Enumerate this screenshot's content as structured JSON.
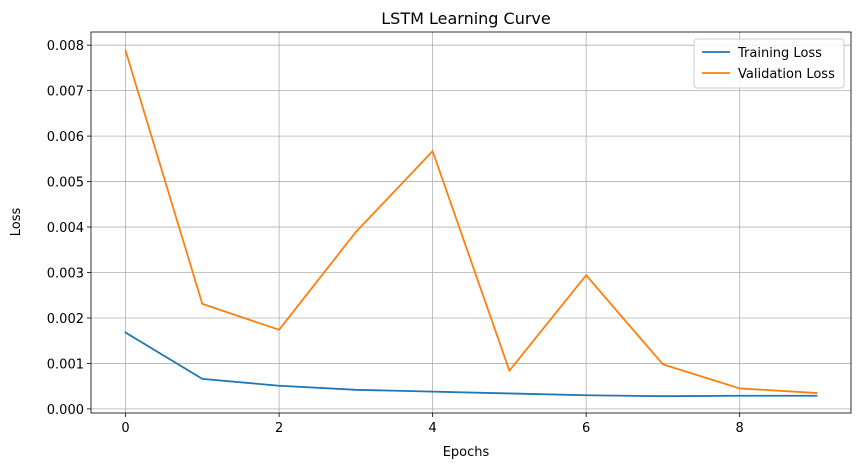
{
  "chart_data": {
    "type": "line",
    "title": "LSTM Learning Curve",
    "xlabel": "Epochs",
    "ylabel": "Loss",
    "x": [
      0,
      1,
      2,
      3,
      4,
      5,
      6,
      7,
      8,
      9
    ],
    "xlim": [
      -0.45,
      9.45
    ],
    "ylim": [
      -9e-05,
      0.00829
    ],
    "xticks": [
      0,
      2,
      4,
      6,
      8
    ],
    "yticks": [
      0.0,
      0.001,
      0.002,
      0.003,
      0.004,
      0.005,
      0.006,
      0.007,
      0.008
    ],
    "xtick_labels": [
      "0",
      "2",
      "4",
      "6",
      "8"
    ],
    "ytick_labels": [
      "0.000",
      "0.001",
      "0.002",
      "0.003",
      "0.004",
      "0.005",
      "0.006",
      "0.007",
      "0.008"
    ],
    "grid": true,
    "legend_position": "top-right",
    "series": [
      {
        "name": "Training Loss",
        "color": "#1f77b4",
        "values": [
          0.00168,
          0.00066,
          0.00051,
          0.00042,
          0.00038,
          0.00034,
          0.0003,
          0.00028,
          0.00029,
          0.00029
        ]
      },
      {
        "name": "Validation Loss",
        "color": "#ff7f0e",
        "values": [
          0.00788,
          0.00231,
          0.00174,
          0.00389,
          0.00567,
          0.00084,
          0.00294,
          0.00098,
          0.00045,
          0.00035
        ]
      }
    ]
  }
}
